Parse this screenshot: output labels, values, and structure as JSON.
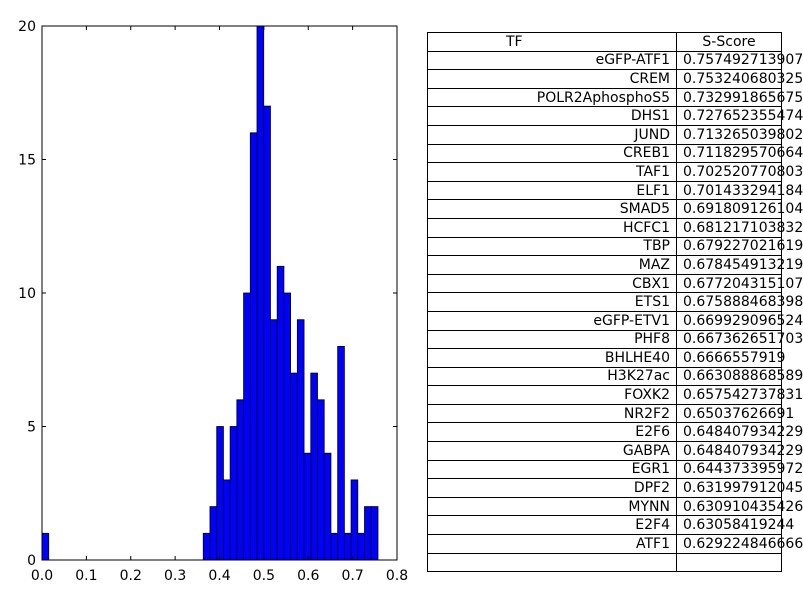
{
  "chart_data": [
    {
      "type": "bar",
      "title": "",
      "xlabel": "",
      "ylabel": "",
      "xlim": [
        0.0,
        0.8
      ],
      "ylim": [
        0,
        20
      ],
      "grid": false,
      "bar_color": "#0000ff",
      "bin_width": 0.01514,
      "x_ticks": [
        "0.0",
        "0.1",
        "0.2",
        "0.3",
        "0.4",
        "0.5",
        "0.6",
        "0.7",
        "0.8"
      ],
      "y_ticks": [
        "0",
        "5",
        "10",
        "15",
        "20"
      ],
      "bin_starts": [
        0.0,
        0.3634,
        0.3785,
        0.3937,
        0.4088,
        0.424,
        0.4391,
        0.4543,
        0.4694,
        0.4845,
        0.4997,
        0.5148,
        0.53,
        0.5451,
        0.5603,
        0.5754,
        0.5905,
        0.6057,
        0.6208,
        0.636,
        0.6511,
        0.6663,
        0.6814,
        0.6965,
        0.7117,
        0.7268,
        0.742
      ],
      "values": [
        1,
        1,
        2,
        5,
        3,
        5,
        6,
        10,
        16,
        20,
        17,
        9,
        11,
        10,
        7,
        9,
        4,
        7,
        6,
        4,
        1,
        8,
        1,
        3,
        1,
        2,
        2
      ]
    },
    {
      "type": "table",
      "columns": [
        "TF",
        "S-Score"
      ],
      "rows": [
        [
          "eGFP-ATF1",
          "0.757492713907"
        ],
        [
          "CREM",
          "0.753240680325"
        ],
        [
          "POLR2AphosphoS5",
          "0.732991865675"
        ],
        [
          "DHS1",
          "0.727652355474"
        ],
        [
          "JUND",
          "0.713265039802"
        ],
        [
          "CREB1",
          "0.711829570664"
        ],
        [
          "TAF1",
          "0.702520770803"
        ],
        [
          "ELF1",
          "0.701433294184"
        ],
        [
          "SMAD5",
          "0.691809126104"
        ],
        [
          "HCFC1",
          "0.681217103832"
        ],
        [
          "TBP",
          "0.679227021619"
        ],
        [
          "MAZ",
          "0.678454913219"
        ],
        [
          "CBX1",
          "0.677204315107"
        ],
        [
          "ETS1",
          "0.675888468398"
        ],
        [
          "eGFP-ETV1",
          "0.669929096524"
        ],
        [
          "PHF8",
          "0.667362651703"
        ],
        [
          "BHLHE40",
          "0.6666557919"
        ],
        [
          "H3K27ac",
          "0.663088868589"
        ],
        [
          "FOXK2",
          "0.657542737831"
        ],
        [
          "NR2F2",
          "0.65037626691"
        ],
        [
          "E2F6",
          "0.648407934229"
        ],
        [
          "GABPA",
          "0.648407934229"
        ],
        [
          "EGR1",
          "0.644373395972"
        ],
        [
          "DPF2",
          "0.631997912045"
        ],
        [
          "MYNN",
          "0.630910435426"
        ],
        [
          "E2F4",
          "0.63058419244"
        ],
        [
          "ATF1",
          "0.629224846666"
        ]
      ]
    }
  ]
}
